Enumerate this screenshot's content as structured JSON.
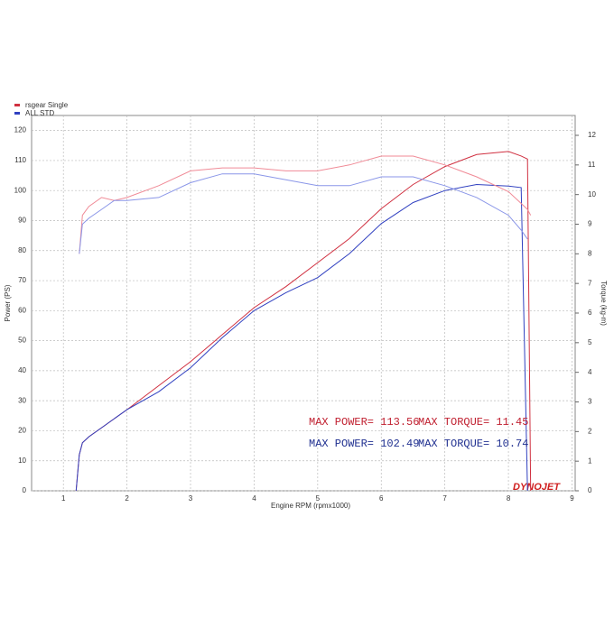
{
  "chart_data": {
    "type": "line",
    "legend": [
      "rsgear Single",
      "ALL STD"
    ],
    "legend_colors": [
      "#d03040",
      "#3040c0"
    ],
    "x_label": "Engine RPM (rpmx1000)",
    "y_label": "Power (PS)",
    "y2_label": "Torque (kg-m)",
    "x": [
      1.2,
      1.25,
      1.3,
      1.4,
      1.6,
      1.8,
      2,
      2.5,
      3,
      3.5,
      4,
      4.5,
      5,
      5.5,
      6,
      6.5,
      7,
      7.5,
      8,
      8.2,
      8.3,
      8.35
    ],
    "series": [
      {
        "name": "rsgear Single Power",
        "color": "#d03040",
        "values": [
          0,
          12,
          16,
          18,
          21,
          24,
          27,
          35,
          43,
          52,
          61,
          68,
          76,
          84,
          94,
          102,
          108,
          112,
          113,
          111.5,
          110.5,
          0
        ]
      },
      {
        "name": "ALL STD Power",
        "color": "#3040c0",
        "values": [
          0,
          12,
          16,
          18,
          21,
          24,
          27,
          33,
          41,
          51,
          60,
          66,
          71,
          79,
          89,
          96,
          100,
          102,
          101.5,
          101,
          0,
          null
        ]
      },
      {
        "name": "rsgear Single Torque",
        "color": "#f08a96",
        "axis": "y2",
        "values": [
          null,
          8,
          9.3,
          9.6,
          9.9,
          9.8,
          9.9,
          10.3,
          10.8,
          10.9,
          10.9,
          10.8,
          10.8,
          11,
          11.3,
          11.3,
          11,
          10.6,
          10.1,
          9.7,
          9.5,
          9.3
        ]
      },
      {
        "name": "ALL STD Torque",
        "color": "#8a96e8",
        "axis": "y2",
        "values": [
          null,
          8,
          9,
          9.2,
          9.5,
          9.8,
          9.8,
          9.9,
          10.4,
          10.7,
          10.7,
          10.5,
          10.3,
          10.3,
          10.6,
          10.6,
          10.3,
          9.9,
          9.3,
          8.8,
          8.5,
          null
        ]
      }
    ],
    "xlim": [
      0.5,
      9.05
    ],
    "xticks": [
      1,
      2,
      3,
      4,
      5,
      6,
      7,
      8,
      9
    ],
    "ylim": [
      0,
      125
    ],
    "yticks": [
      0,
      10,
      20,
      30,
      40,
      50,
      60,
      70,
      80,
      90,
      100,
      110,
      120
    ],
    "y2lim": [
      0,
      12.67
    ],
    "y2ticks": [
      0,
      1,
      2,
      3,
      4,
      5,
      6,
      7,
      8,
      9,
      10,
      11,
      12
    ],
    "grid": true,
    "annotations": [
      {
        "text": "MAX POWER= 113.56",
        "color": "#c02030"
      },
      {
        "text": "MAX TORQUE= 11.45",
        "color": "#c02030"
      },
      {
        "text": "MAX POWER= 102.49",
        "color": "#203090"
      },
      {
        "text": "MAX TORQUE= 10.74",
        "color": "#203090"
      }
    ],
    "logo": "DYNOJET"
  }
}
